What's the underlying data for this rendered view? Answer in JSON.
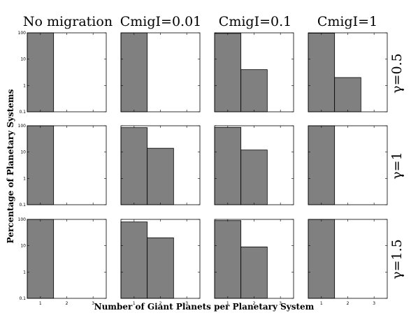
{
  "figure": {
    "column_titles": [
      "No migration",
      "CmigI=0.01",
      "CmigI=0.1",
      "CmigI=1"
    ],
    "row_titles": [
      "γ=0.5",
      "γ=1",
      "γ=1.5"
    ],
    "ylabel": "Percentage of Planetary Systems",
    "xlabel": "Number of Giant Planets per Planetary System",
    "bar_color": "#808080"
  },
  "chart_data": {
    "type": "bar",
    "yscale": "log",
    "ylim": [
      0.1,
      100
    ],
    "xlim": [
      0.5,
      3.5
    ],
    "y_ticks": [
      0.1,
      1,
      10,
      100
    ],
    "y_tick_labels": [
      "0.1",
      "1",
      "10",
      "100"
    ],
    "x_ticks": [
      1,
      2,
      3
    ],
    "x_tick_labels": [
      "1",
      "2",
      "3"
    ],
    "panels": [
      {
        "row": 0,
        "col": 0,
        "values": [
          100,
          0,
          0
        ]
      },
      {
        "row": 0,
        "col": 1,
        "values": [
          100,
          0,
          0
        ]
      },
      {
        "row": 0,
        "col": 2,
        "values": [
          95,
          4,
          0
        ]
      },
      {
        "row": 0,
        "col": 3,
        "values": [
          97,
          2,
          0
        ]
      },
      {
        "row": 1,
        "col": 0,
        "values": [
          100,
          0,
          0
        ]
      },
      {
        "row": 1,
        "col": 1,
        "values": [
          85,
          14,
          0
        ]
      },
      {
        "row": 1,
        "col": 2,
        "values": [
          87,
          12,
          0
        ]
      },
      {
        "row": 1,
        "col": 3,
        "values": [
          100,
          0,
          0
        ]
      },
      {
        "row": 2,
        "col": 0,
        "values": [
          100,
          0,
          0
        ]
      },
      {
        "row": 2,
        "col": 1,
        "values": [
          80,
          20,
          0
        ]
      },
      {
        "row": 2,
        "col": 2,
        "values": [
          90,
          9,
          0
        ]
      },
      {
        "row": 2,
        "col": 3,
        "values": [
          100,
          0,
          0
        ]
      }
    ]
  }
}
